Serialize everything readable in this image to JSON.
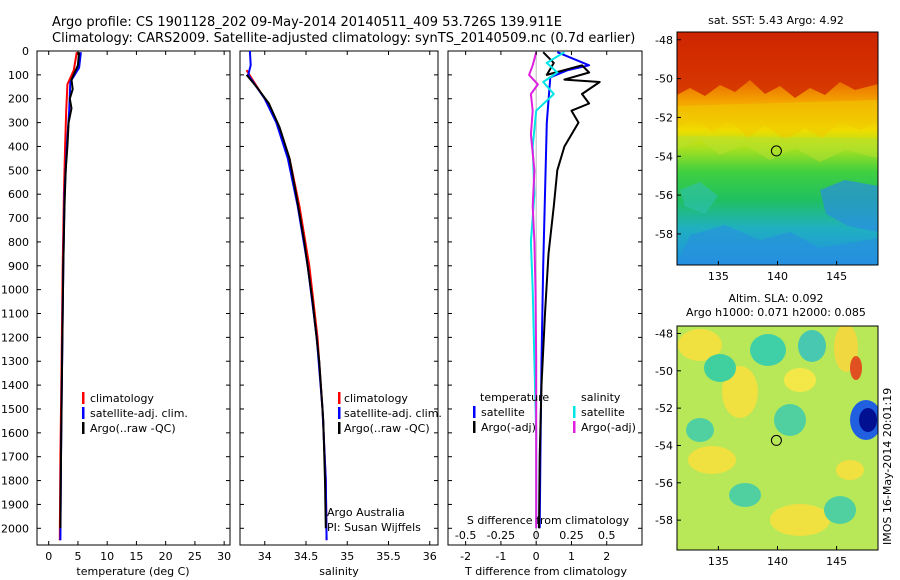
{
  "header": {
    "line1": "Argo profile: CS 1901128_202 09-May-2014 20140511_409 53.726S 139.911E",
    "line2": "Climatology: CARS2009. Satellite-adjusted climatology: synTS_20140509.nc (0.7d earlier)"
  },
  "colors": {
    "climatology": "#ff0000",
    "satellite": "#0000ff",
    "argo": "#000000",
    "satellite_diff": "#00e5e5",
    "argo_adj_diff": "#e020e0"
  },
  "depth_axis": {
    "ticks": [
      "0",
      "100",
      "200",
      "300",
      "400",
      "500",
      "600",
      "700",
      "800",
      "900",
      "1000",
      "1100",
      "1200",
      "1300",
      "1400",
      "1500",
      "1600",
      "1700",
      "1800",
      "1900",
      "2000"
    ]
  },
  "footer": {
    "credit": "Argo Australia",
    "pi": "PI: Susan Wijffels"
  },
  "watermark": "IMOS 16-May-2014 20:01:19",
  "chart_data": [
    {
      "type": "line",
      "id": "temperature",
      "xlabel": "temperature (deg C)",
      "ylabel": "",
      "xlim": [
        -2,
        31
      ],
      "ylim": [
        2070,
        0
      ],
      "x_ticks": [
        "0",
        "5",
        "10",
        "15",
        "20",
        "25",
        "30"
      ],
      "legend": {
        "placement": "lower-center",
        "entries": [
          "climatology",
          "satellite-adj. clim.",
          "Argo(..raw -QC)"
        ]
      },
      "series": [
        {
          "name": "climatology",
          "color_key": "climatology",
          "points": [
            [
              4.8,
              5
            ],
            [
              4.3,
              80
            ],
            [
              3.2,
              140
            ],
            [
              3.0,
              250
            ],
            [
              2.8,
              400
            ],
            [
              2.6,
              600
            ],
            [
              2.4,
              900
            ],
            [
              2.2,
              1300
            ],
            [
              2.0,
              1700
            ],
            [
              1.9,
              2050
            ]
          ]
        },
        {
          "name": "satellite-adj. clim.",
          "color_key": "satellite",
          "points": [
            [
              5.5,
              5
            ],
            [
              5.2,
              70
            ],
            [
              3.7,
              130
            ],
            [
              3.5,
              250
            ],
            [
              3.1,
              400
            ],
            [
              2.7,
              600
            ],
            [
              2.5,
              900
            ],
            [
              2.3,
              1300
            ],
            [
              2.1,
              1700
            ],
            [
              2.0,
              2050
            ]
          ]
        },
        {
          "name": "Argo(..raw -QC)",
          "color_key": "argo",
          "points": [
            [
              5.2,
              5
            ],
            [
              5.0,
              60
            ],
            [
              3.9,
              120
            ],
            [
              4.1,
              160
            ],
            [
              3.6,
              200
            ],
            [
              3.9,
              240
            ],
            [
              3.4,
              300
            ],
            [
              3.2,
              400
            ],
            [
              2.9,
              500
            ],
            [
              2.7,
              650
            ],
            [
              2.5,
              900
            ],
            [
              2.3,
              1300
            ],
            [
              2.1,
              1700
            ],
            [
              2.0,
              2000
            ]
          ]
        }
      ]
    },
    {
      "type": "line",
      "id": "salinity",
      "xlabel": "salinity",
      "ylabel": "",
      "xlim": [
        33.7,
        36.1
      ],
      "ylim": [
        2070,
        0
      ],
      "x_ticks": [
        "34",
        "34.5",
        "35",
        "35.5",
        "36"
      ],
      "legend": {
        "placement": "lower-center",
        "entries": [
          "climatology",
          "satellite-adj. clim.",
          "Argo(..raw -QC)"
        ]
      },
      "series": [
        {
          "name": "climatology",
          "color_key": "climatology",
          "points": [
            [
              33.78,
              80
            ],
            [
              33.85,
              120
            ],
            [
              34.0,
              200
            ],
            [
              34.15,
              300
            ],
            [
              34.3,
              450
            ],
            [
              34.42,
              650
            ],
            [
              34.54,
              900
            ],
            [
              34.64,
              1200
            ],
            [
              34.7,
              1500
            ],
            [
              34.74,
              1800
            ],
            [
              34.75,
              2050
            ]
          ]
        },
        {
          "name": "satellite-adj. clim.",
          "color_key": "satellite",
          "points": [
            [
              33.82,
              0
            ],
            [
              33.83,
              60
            ],
            [
              33.8,
              100
            ],
            [
              33.88,
              140
            ],
            [
              34.0,
              200
            ],
            [
              34.14,
              300
            ],
            [
              34.28,
              450
            ],
            [
              34.4,
              650
            ],
            [
              34.52,
              900
            ],
            [
              34.63,
              1200
            ],
            [
              34.7,
              1500
            ],
            [
              34.74,
              1800
            ],
            [
              34.75,
              2050
            ]
          ]
        },
        {
          "name": "Argo(..raw -QC)",
          "color_key": "argo",
          "points": [
            [
              33.78,
              100
            ],
            [
              33.9,
              150
            ],
            [
              34.05,
              220
            ],
            [
              34.18,
              320
            ],
            [
              34.3,
              450
            ],
            [
              34.38,
              600
            ],
            [
              34.48,
              800
            ],
            [
              34.58,
              1050
            ],
            [
              34.66,
              1300
            ],
            [
              34.71,
              1550
            ],
            [
              34.73,
              1800
            ],
            [
              34.74,
              2000
            ]
          ]
        }
      ]
    },
    {
      "type": "line",
      "id": "difference",
      "xlabel": "T difference from climatology",
      "title": "S difference from climatology",
      "xlim": [
        -2.5,
        3.0
      ],
      "ylim": [
        2070,
        0
      ],
      "x_ticks": [
        "-2",
        "-1",
        "0",
        "1",
        "2"
      ],
      "top_x_ticks": [
        "-0.5",
        "-0.25",
        "0",
        "0.25",
        "0.5"
      ],
      "legend": {
        "placement": "lower-center",
        "groups": [
          "temperature",
          "salinity"
        ],
        "entries": [
          "satellite",
          "Argo(-adj)",
          "satellite",
          "Argo(-adj)"
        ]
      },
      "series": [
        {
          "name": "temperature satellite",
          "color_key": "satellite",
          "points": [
            [
              0.6,
              5
            ],
            [
              1.5,
              60
            ],
            [
              0.9,
              80
            ],
            [
              0.4,
              110
            ],
            [
              0.3,
              300
            ],
            [
              0.25,
              600
            ],
            [
              0.2,
              900
            ],
            [
              0.15,
              1300
            ],
            [
              0.12,
              1700
            ],
            [
              0.1,
              2000
            ]
          ]
        },
        {
          "name": "temperature Argo(-adj)",
          "color_key": "argo",
          "points": [
            [
              0.2,
              5
            ],
            [
              0.5,
              50
            ],
            [
              0.3,
              100
            ],
            [
              1.3,
              60
            ],
            [
              1.5,
              90
            ],
            [
              0.8,
              120
            ],
            [
              1.8,
              130
            ],
            [
              1.3,
              180
            ],
            [
              1.5,
              220
            ],
            [
              1.0,
              250
            ],
            [
              1.2,
              300
            ],
            [
              0.8,
              400
            ],
            [
              0.6,
              500
            ],
            [
              0.5,
              650
            ],
            [
              0.35,
              850
            ],
            [
              0.25,
              1100
            ],
            [
              0.15,
              1400
            ],
            [
              0.1,
              1700
            ],
            [
              0.08,
              2000
            ]
          ]
        },
        {
          "name": "salinity satellite",
          "color_key": "satellite_diff",
          "points": [
            [
              0.8,
              5
            ],
            [
              0.3,
              50
            ],
            [
              0.6,
              90
            ],
            [
              0.2,
              130
            ],
            [
              0.5,
              180
            ],
            [
              0.0,
              250
            ],
            [
              -0.1,
              400
            ],
            [
              -0.05,
              600
            ],
            [
              -0.15,
              800
            ],
            [
              -0.1,
              1000
            ],
            [
              -0.05,
              1300
            ],
            [
              0.0,
              1600
            ],
            [
              0.0,
              2000
            ]
          ]
        },
        {
          "name": "salinity Argo(-adj)",
          "color_key": "argo_adj_diff",
          "points": [
            [
              0.0,
              5
            ],
            [
              -0.1,
              60
            ],
            [
              -0.2,
              100
            ],
            [
              0.05,
              140
            ],
            [
              -0.15,
              180
            ],
            [
              -0.1,
              250
            ],
            [
              -0.15,
              350
            ],
            [
              -0.05,
              500
            ],
            [
              -0.1,
              650
            ],
            [
              -0.05,
              800
            ],
            [
              -0.02,
              1000
            ],
            [
              0.0,
              1300
            ],
            [
              0.0,
              1600
            ],
            [
              0.0,
              2000
            ]
          ]
        }
      ]
    },
    {
      "type": "heatmap",
      "id": "sst_map",
      "title": "sat. SST: 5.43 Argo: 4.92",
      "xlim": [
        131.5,
        148.5
      ],
      "ylim": [
        -59.6,
        -47.6
      ],
      "x_ticks": [
        "135",
        "140",
        "145"
      ],
      "y_ticks": [
        "-48",
        "-50",
        "-52",
        "-54",
        "-56",
        "-58"
      ],
      "marker": {
        "lon": 139.911,
        "lat": -53.726
      }
    },
    {
      "type": "heatmap",
      "id": "sla_map",
      "title": "Altim. SLA: 0.092",
      "subtitle": "Argo h1000: 0.071 h2000: 0.085",
      "xlim": [
        131.5,
        148.5
      ],
      "ylim": [
        -59.6,
        -47.6
      ],
      "x_ticks": [
        "135",
        "140",
        "145"
      ],
      "y_ticks": [
        "-48",
        "-50",
        "-52",
        "-54",
        "-56",
        "-58"
      ],
      "marker": {
        "lon": 139.911,
        "lat": -53.726
      }
    }
  ]
}
